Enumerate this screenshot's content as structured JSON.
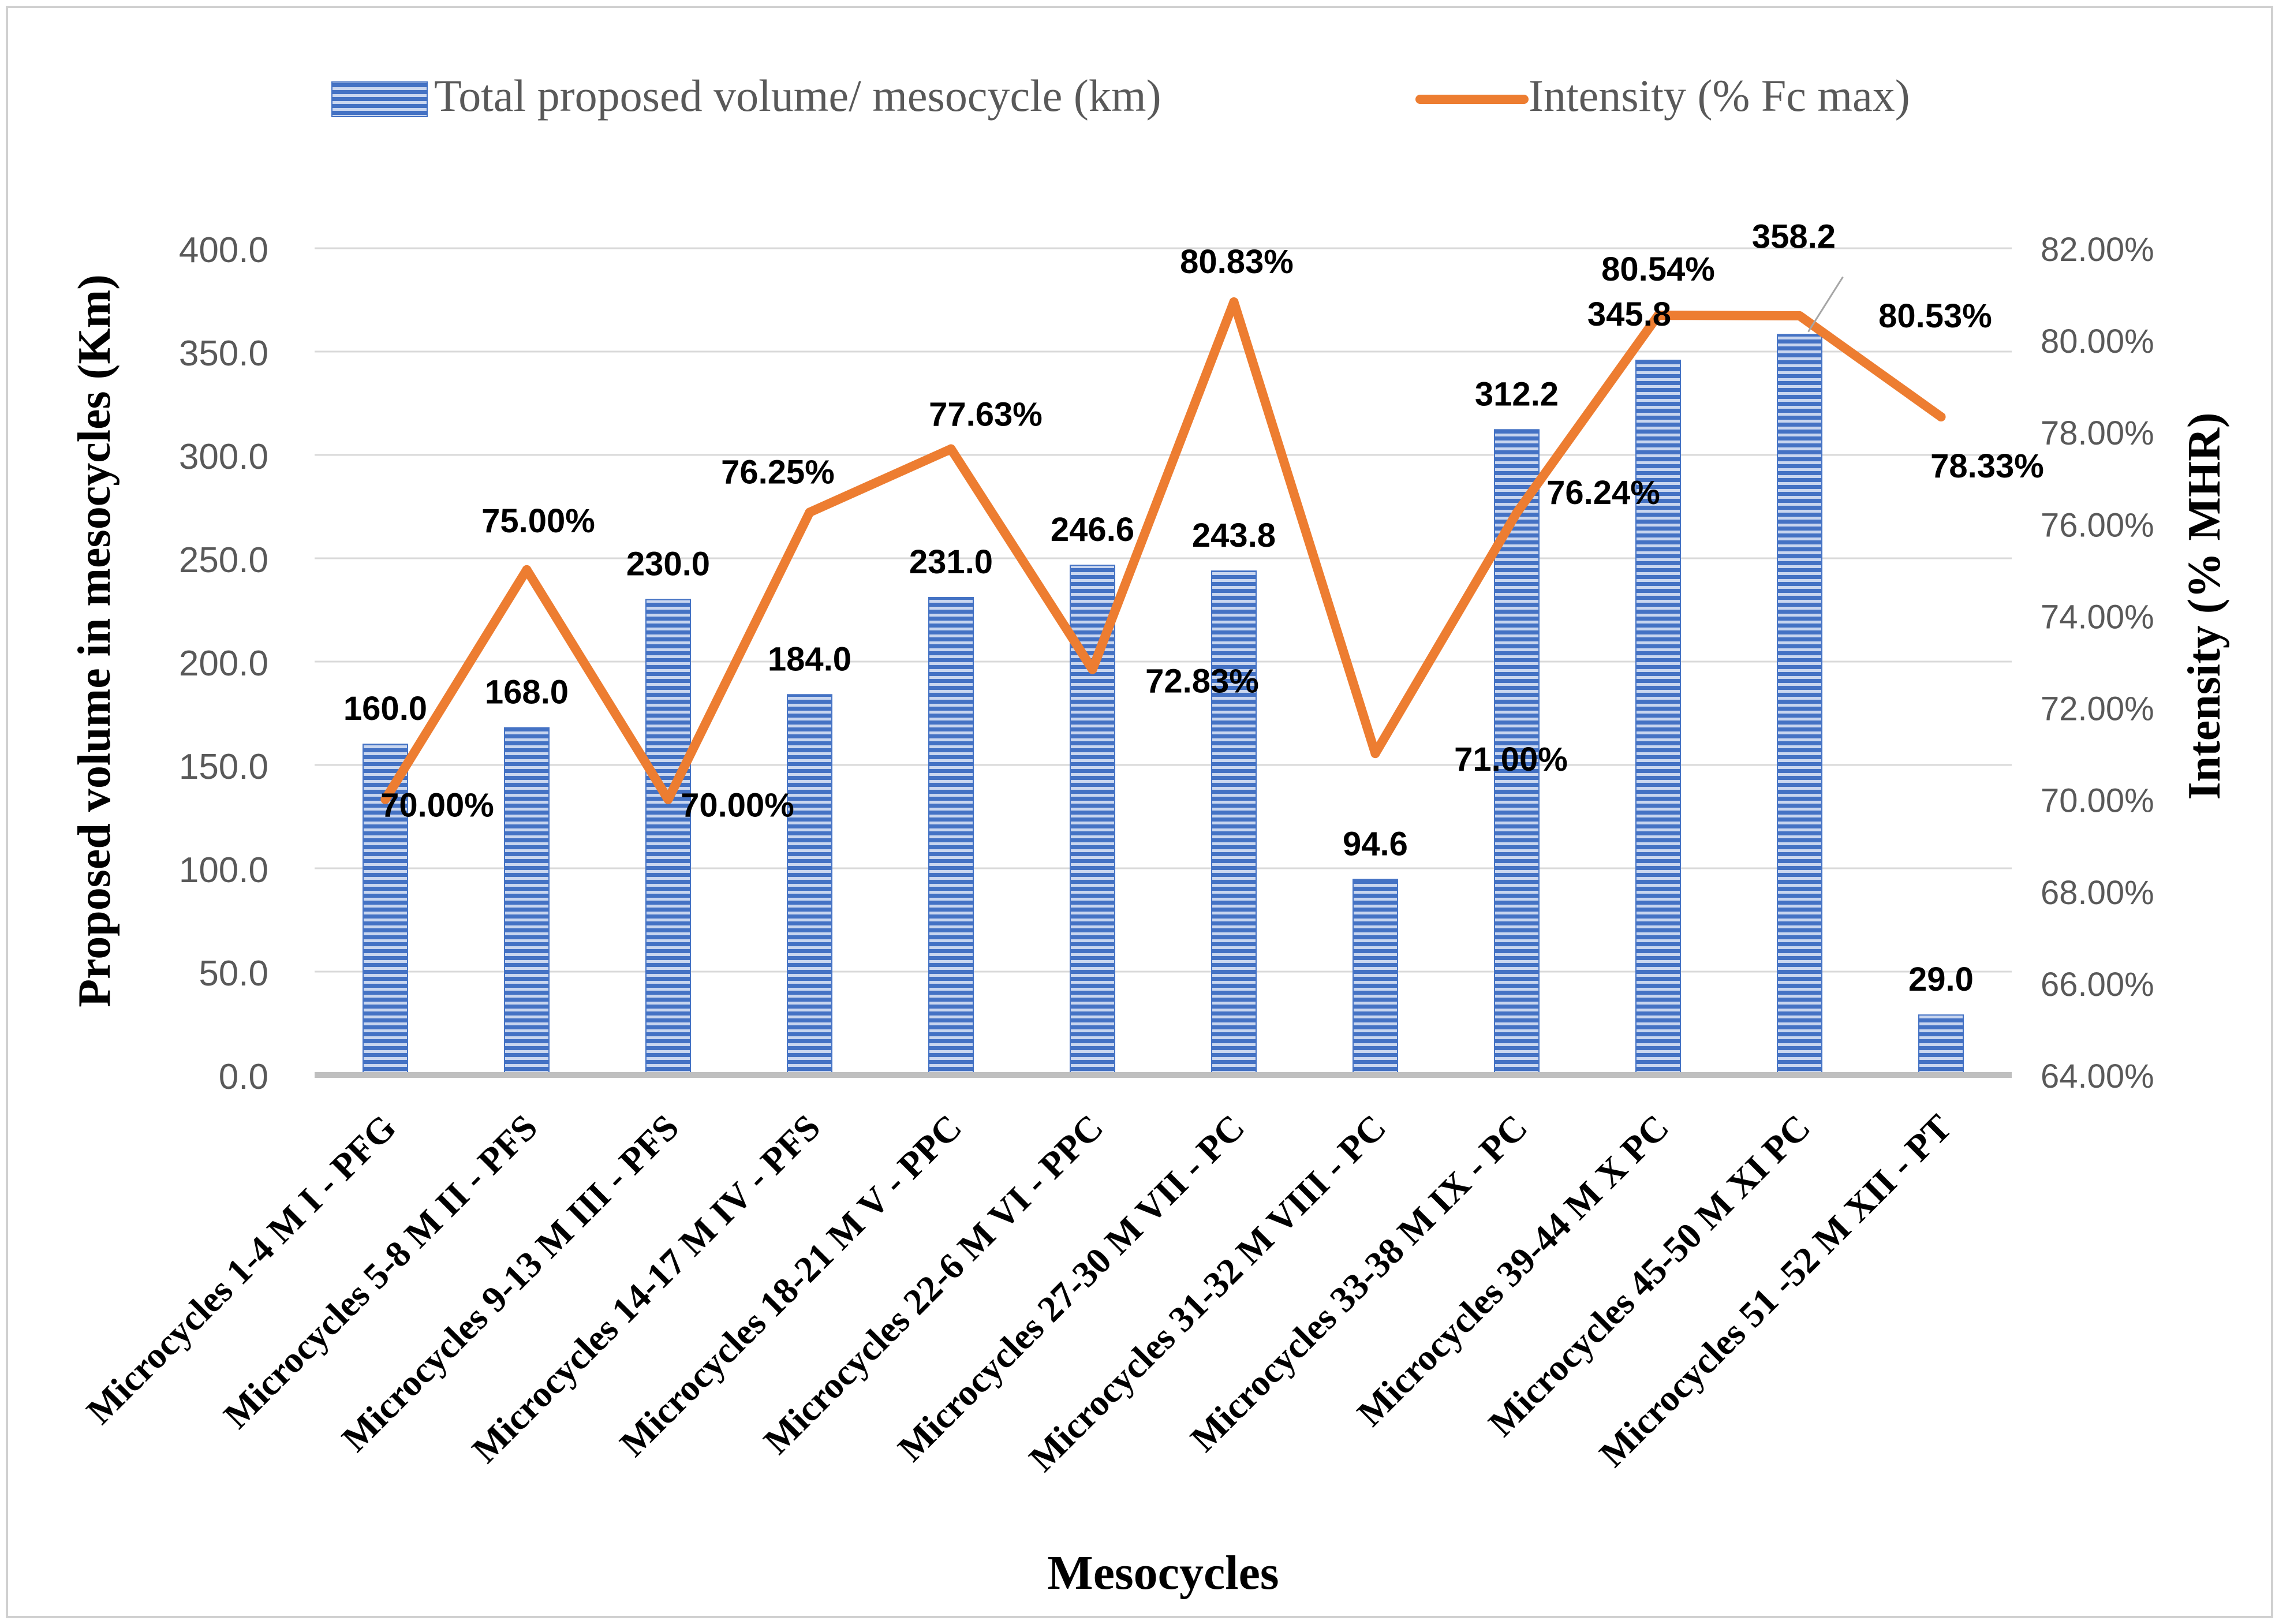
{
  "chart_data": {
    "type": "bar",
    "xlabel": "Mesocycles",
    "ylabel": "Proposed volume in mesocycles (Km)",
    "y2label": "Intensity  (% MHR)",
    "ylim": [
      0,
      400
    ],
    "y2lim": [
      0.64,
      0.82
    ],
    "yticks": [
      "0.0",
      "50.0",
      "100.0",
      "150.0",
      "200.0",
      "250.0",
      "300.0",
      "350.0",
      "400.0"
    ],
    "y2ticks": [
      "64.00%",
      "66.00%",
      "68.00%",
      "70.00%",
      "72.00%",
      "74.00%",
      "76.00%",
      "78.00%",
      "80.00%",
      "82.00%"
    ],
    "grid": true,
    "legend_position": "top",
    "categories": [
      "Microcycles 1-4 M I - PFG",
      "Microcycles 5-8 M II - PFS",
      "Microcycles 9-13 M III - PFS",
      "Microcycles 14-17 M IV - PFS",
      "Microcycles 18-21 M V - PPC",
      "Microcycles 22-6 M VI - PPC",
      "Microcycles 27-30 M VII - PC",
      "Microcycles 31-32 M VIII - PC",
      "Microcycles 33-38 M IX - PC",
      "Microcycles 39-44 M X PC",
      "Microcycles 45-50 M XI PC",
      "Microcycles 51 -52 M XII - PT"
    ],
    "series": [
      {
        "name": "Total proposed volume/ mesocycle (km)",
        "type": "bar",
        "axis": "left",
        "color": "#4472C4",
        "values": [
          160.0,
          168.0,
          230.0,
          184.0,
          231.0,
          246.6,
          243.8,
          94.6,
          312.2,
          345.8,
          358.2,
          29.0
        ],
        "labels": [
          "160.0",
          "168.0",
          "230.0",
          "184.0",
          "231.0",
          "246.6",
          "243.8",
          "94.6",
          "312.2",
          "345.8",
          "358.2",
          "29.0"
        ]
      },
      {
        "name": "Intensity (% Fc max)",
        "type": "line",
        "axis": "right",
        "color": "#ED7D31",
        "values": [
          0.7,
          0.75,
          0.7,
          0.7625,
          0.7763,
          0.7283,
          0.8083,
          0.71,
          0.7624,
          0.8054,
          0.8053,
          0.7833
        ],
        "labels": [
          "70.00%",
          "75.00%",
          "70.00%",
          "76.25%",
          "77.63%",
          "72.83%",
          "80.83%",
          "71.00%",
          "76.24%",
          "80.54%",
          "80.53%",
          "78.33%"
        ]
      }
    ]
  }
}
